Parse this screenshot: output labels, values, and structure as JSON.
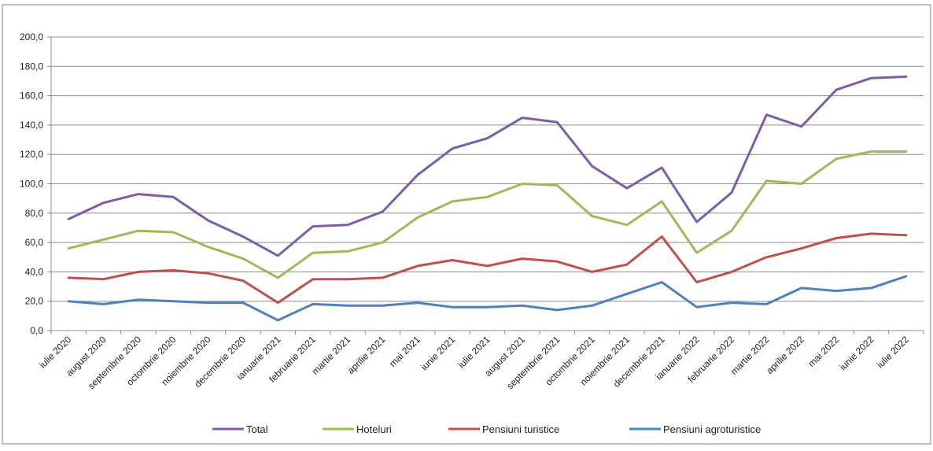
{
  "chart_data": {
    "type": "line",
    "title": "",
    "xlabel": "",
    "ylabel": "",
    "ylim": [
      0,
      200
    ],
    "yticks": [
      "0,0",
      "20,0",
      "40,0",
      "60,0",
      "80,0",
      "100,0",
      "120,0",
      "140,0",
      "160,0",
      "180,0",
      "200,0"
    ],
    "grid": "horizontal",
    "legend": "bottom",
    "categories": [
      "iulie 2020",
      "august 2020",
      "septembrie 2020",
      "octombrie 2020",
      "noiembrie 2020",
      "decembrie 2020",
      "ianuarie 2021",
      "februarie 2021",
      "martie 2021",
      "aprilie 2021",
      "mai 2021",
      "iunie 2021",
      "iulie 2021",
      "august 2021",
      "septembrie 2021",
      "octombrie 2021",
      "noiembrie 2021",
      "decembrie 2021",
      "ianuarie 2022",
      "februarie 2022",
      "martie 2022",
      "aprilie 2022",
      "mai 2022",
      "iunie 2022",
      "iulie 2022"
    ],
    "series": [
      {
        "name": "Total",
        "color": "#7b5ea7",
        "values": [
          76,
          87,
          93,
          91,
          75,
          64,
          51,
          71,
          72,
          81,
          106,
          124,
          131,
          145,
          142,
          112,
          97,
          111,
          74,
          94,
          147,
          139,
          164,
          172,
          173
        ]
      },
      {
        "name": "Hoteluri",
        "color": "#9bbb59",
        "values": [
          56,
          62,
          68,
          67,
          57,
          49,
          36,
          53,
          54,
          60,
          77,
          88,
          91,
          100,
          99,
          78,
          72,
          88,
          53,
          68,
          102,
          100,
          117,
          122,
          122
        ]
      },
      {
        "name": "Pensiuni turistice",
        "color": "#c0504d",
        "values": [
          36,
          35,
          40,
          41,
          39,
          34,
          19,
          35,
          35,
          36,
          44,
          48,
          44,
          49,
          47,
          40,
          45,
          64,
          33,
          40,
          50,
          56,
          63,
          66,
          65
        ]
      },
      {
        "name": "Pensiuni agroturistice",
        "color": "#4f81bd",
        "values": [
          20,
          18,
          21,
          20,
          19,
          19,
          7,
          18,
          17,
          17,
          19,
          16,
          16,
          17,
          14,
          17,
          25,
          33,
          16,
          19,
          18,
          29,
          27,
          29,
          37
        ]
      }
    ]
  }
}
